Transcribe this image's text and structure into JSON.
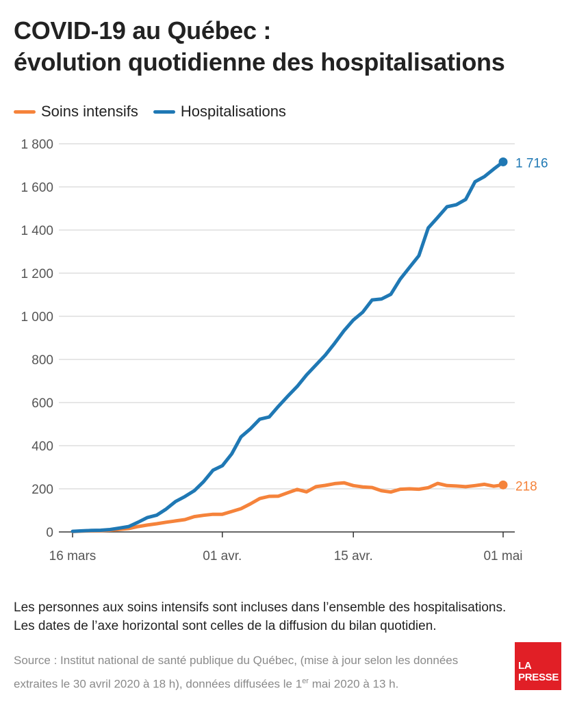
{
  "title_line1": "COVID-19 au Québec :",
  "title_line2": "évolution quotidienne des hospitalisations",
  "notes": [
    "Les personnes aux soins intensifs sont incluses dans l’ensemble des hospitalisations.",
    "Les dates de l’axe horizontal sont celles de la diffusion du bilan quotidien."
  ],
  "source_line1": "Source : Institut national de santé publique du Québec, (mise à jour selon les données",
  "source_line2_before": "extraites le 30 avril 2020 à 18 h), données diffusées le 1",
  "source_line2_sup": "er",
  "source_line2_after": " mai 2020 à 13 h.",
  "logo": {
    "line1": "LA",
    "line2": "PRESSE"
  },
  "colors": {
    "orange": "#f5833b",
    "blue": "#1f78b4",
    "grid": "#cccccc",
    "axis": "#333333"
  },
  "chart_data": {
    "type": "line",
    "title": "COVID-19 au Québec : évolution quotidienne des hospitalisations",
    "x": [
      "16 mars",
      "17 mars",
      "18 mars",
      "19 mars",
      "20 mars",
      "21 mars",
      "22 mars",
      "23 mars",
      "24 mars",
      "25 mars",
      "26 mars",
      "27 mars",
      "28 mars",
      "29 mars",
      "30 mars",
      "31 mars",
      "01 avr.",
      "02 avr.",
      "03 avr.",
      "04 avr.",
      "05 avr.",
      "06 avr.",
      "07 avr.",
      "08 avr.",
      "09 avr.",
      "10 avr.",
      "11 avr.",
      "12 avr.",
      "13 avr.",
      "14 avr.",
      "15 avr.",
      "16 avr.",
      "17 avr.",
      "18 avr.",
      "19 avr.",
      "20 avr.",
      "21 avr.",
      "22 avr.",
      "23 avr.",
      "24 avr.",
      "25 avr.",
      "26 avr.",
      "27 avr.",
      "28 avr.",
      "29 avr.",
      "30 avr.",
      "01 mai"
    ],
    "xticks": [
      "16 mars",
      "01 avr.",
      "15 avr.",
      "01 mai"
    ],
    "ylim": [
      0,
      1800
    ],
    "yticks": [
      0,
      200,
      400,
      600,
      800,
      1000,
      1200,
      1400,
      1600,
      1800
    ],
    "ytick_labels": [
      "0",
      "200",
      "400",
      "600",
      "800",
      "1 000",
      "1 200",
      "1 400",
      "1 600",
      "1 800"
    ],
    "grid": true,
    "legend_position": "top-left",
    "series": [
      {
        "name": "Soins intensifs",
        "color": "#f5833b",
        "end_label": "218",
        "values": [
          2,
          4,
          5,
          6,
          8,
          12,
          16,
          25,
          32,
          38,
          45,
          51,
          57,
          71,
          77,
          82,
          82,
          95,
          108,
          130,
          155,
          165,
          166,
          182,
          197,
          186,
          210,
          216,
          224,
          228,
          215,
          209,
          206,
          191,
          185,
          198,
          200,
          198,
          205,
          225,
          215,
          213,
          210,
          215,
          221,
          212,
          218
        ]
      },
      {
        "name": "Hospitalisations",
        "color": "#1f78b4",
        "end_label": "1 716",
        "values": [
          3,
          5,
          7,
          8,
          11,
          18,
          25,
          45,
          67,
          78,
          106,
          141,
          164,
          191,
          233,
          286,
          307,
          362,
          441,
          478,
          523,
          533,
          583,
          630,
          675,
          728,
          774,
          820,
          875,
          933,
          983,
          1019,
          1076,
          1080,
          1102,
          1172,
          1227,
          1281,
          1410,
          1458,
          1508,
          1517,
          1542,
          1624,
          1648,
          1683,
          1716
        ]
      }
    ]
  }
}
